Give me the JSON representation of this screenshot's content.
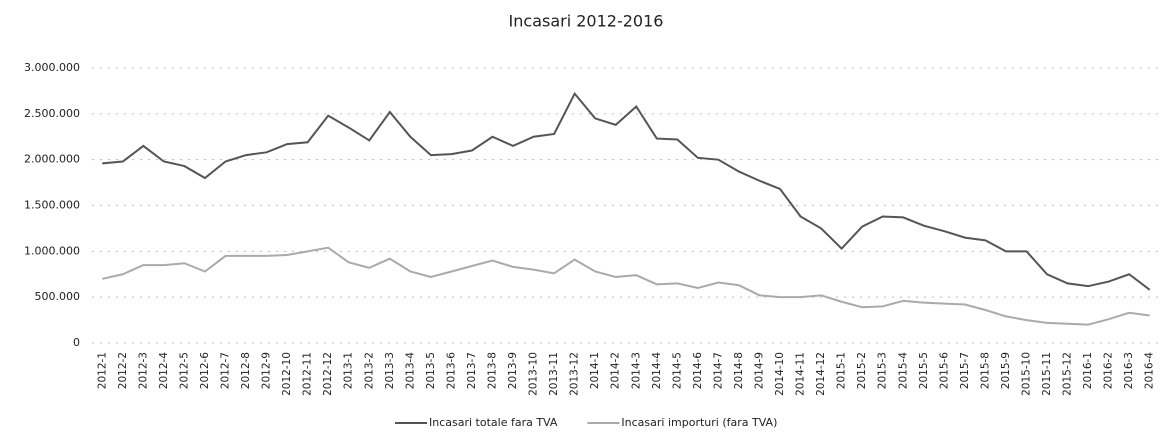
{
  "chart_data": {
    "type": "line",
    "title": "Incasari 2012-2016",
    "categories": [
      "2012-1",
      "2012-2",
      "2012-3",
      "2012-4",
      "2012-5",
      "2012-6",
      "2012-7",
      "2012-8",
      "2012-9",
      "2012-10",
      "2012-11",
      "2012-12",
      "2013-1",
      "2013-2",
      "2013-3",
      "2013-4",
      "2013-5",
      "2013-6",
      "2013-7",
      "2013-8",
      "2013-9",
      "2013-10",
      "2013-11",
      "2013-12",
      "2014-1",
      "2014-2",
      "2014-3",
      "2014-4",
      "2014-5",
      "2014-6",
      "2014-7",
      "2014-8",
      "2014-9",
      "2014-10",
      "2014-11",
      "2014-12",
      "2015-1",
      "2015-2",
      "2015-3",
      "2015-4",
      "2015-5",
      "2015-6",
      "2015-7",
      "2015-8",
      "2015-9",
      "2015-10",
      "2015-11",
      "2015-12",
      "2016-1",
      "2016-2",
      "2016-3",
      "2016-4"
    ],
    "series": [
      {
        "name": "Incasari totale fara TVA",
        "color": "#555555",
        "values": [
          1960000,
          1980000,
          2150000,
          1980000,
          1930000,
          1800000,
          1980000,
          2050000,
          2080000,
          2170000,
          2190000,
          2480000,
          2350000,
          2210000,
          2520000,
          2250000,
          2050000,
          2060000,
          2100000,
          2250000,
          2150000,
          2250000,
          2280000,
          2720000,
          2450000,
          2380000,
          2580000,
          2230000,
          2220000,
          2020000,
          2000000,
          1870000,
          1770000,
          1680000,
          1380000,
          1250000,
          1030000,
          1270000,
          1380000,
          1370000,
          1280000,
          1220000,
          1150000,
          1120000,
          1000000,
          1000000,
          750000,
          650000,
          620000,
          670000,
          750000,
          580000
        ]
      },
      {
        "name": "Incasari importuri (fara TVA)",
        "color": "#aaaaaa",
        "values": [
          700000,
          750000,
          850000,
          850000,
          870000,
          780000,
          950000,
          950000,
          950000,
          960000,
          1000000,
          1040000,
          880000,
          820000,
          920000,
          780000,
          720000,
          780000,
          840000,
          900000,
          830000,
          800000,
          760000,
          910000,
          780000,
          720000,
          740000,
          640000,
          650000,
          600000,
          660000,
          630000,
          520000,
          500000,
          500000,
          520000,
          450000,
          390000,
          400000,
          460000,
          440000,
          430000,
          420000,
          360000,
          290000,
          250000,
          220000,
          210000,
          200000,
          260000,
          330000,
          300000
        ]
      }
    ],
    "ylim": [
      0,
      3000000
    ],
    "yticks": [
      0,
      {
        "value": 500000,
        "label": "500.000"
      },
      {
        "value": 1000000,
        "label": "1.000.000"
      },
      {
        "value": 1500000,
        "label": "1.500.000"
      },
      {
        "value": 2000000,
        "label": "2.000.000"
      },
      {
        "value": 2500000,
        "label": "2.500.000"
      },
      {
        "value": 3000000,
        "label": "3.000.000"
      }
    ],
    "grid": true,
    "legend": "bottom"
  }
}
